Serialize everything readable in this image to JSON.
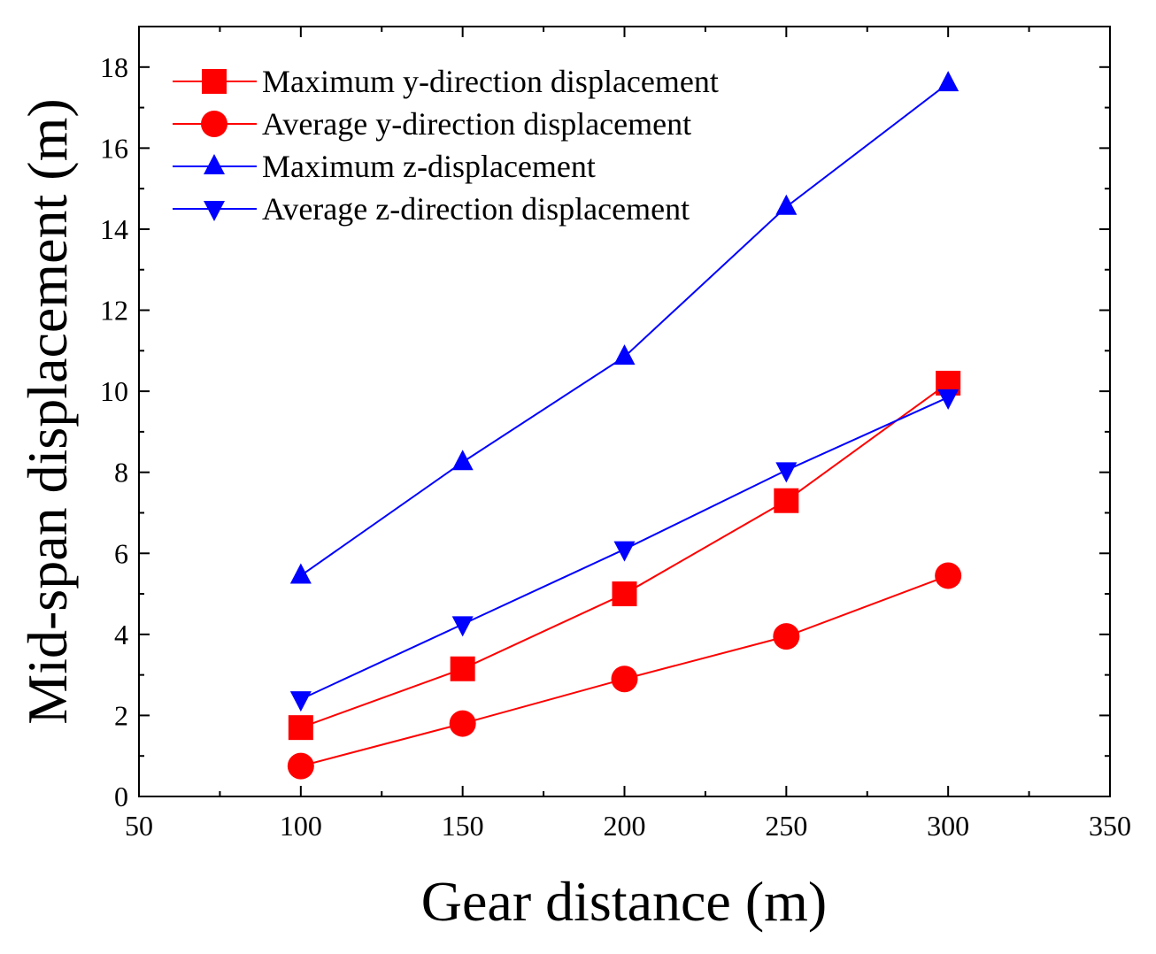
{
  "chart_data": {
    "type": "line",
    "title": "",
    "xlabel": "Gear distance (m)",
    "ylabel": "Mid-span displacement (m)",
    "xlim": [
      50,
      350
    ],
    "ylim": [
      0,
      19
    ],
    "xticks": [
      50,
      100,
      150,
      200,
      250,
      300,
      350
    ],
    "xtick_labels": [
      "50",
      "100",
      "150",
      "200",
      "250",
      "300",
      "350"
    ],
    "yticks": [
      0,
      2,
      4,
      6,
      8,
      10,
      12,
      14,
      16,
      18
    ],
    "ytick_labels": [
      "0",
      "2",
      "4",
      "6",
      "8",
      "10",
      "12",
      "14",
      "16",
      "18"
    ],
    "grid": false,
    "legend_position": "top-left",
    "x": [
      100,
      150,
      200,
      250,
      300
    ],
    "series": [
      {
        "name": "Maximum y-direction displacement",
        "values": [
          1.7,
          3.15,
          5.0,
          7.3,
          10.2
        ],
        "color": "#ff0000",
        "marker": "square"
      },
      {
        "name": "Average y-direction displacement",
        "values": [
          0.75,
          1.8,
          2.9,
          3.95,
          5.45
        ],
        "color": "#ff0000",
        "marker": "circle"
      },
      {
        "name": "Maximum z-displacement",
        "values": [
          5.45,
          8.25,
          10.85,
          14.55,
          17.6
        ],
        "color": "#0000ff",
        "marker": "triangle-up"
      },
      {
        "name": "Average z-direction displacement",
        "values": [
          2.4,
          4.25,
          6.1,
          8.05,
          9.85
        ],
        "color": "#0000ff",
        "marker": "triangle-down"
      }
    ]
  }
}
